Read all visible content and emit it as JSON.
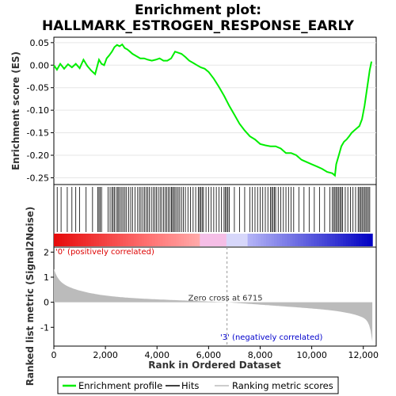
{
  "chart_data": {
    "type": "line",
    "title_line1": "Enrichment plot:",
    "title_line2": "HALLMARK_ESTROGEN_RESPONSE_EARLY",
    "top_panel": {
      "ylabel": "Enrichment score (ES)",
      "ylim": [
        -0.265,
        0.062
      ],
      "yticks": [
        0.05,
        0.0,
        -0.05,
        -0.1,
        -0.15,
        -0.2,
        -0.25
      ],
      "ytick_labels": [
        "0.05",
        "0.00",
        "-0.05",
        "-0.10",
        "-0.15",
        "-0.20",
        "-0.25"
      ],
      "series": [
        {
          "name": "Enrichment profile",
          "color": "#00ee00",
          "x": [
            0,
            120,
            250,
            400,
            550,
            700,
            850,
            1000,
            1150,
            1300,
            1450,
            1600,
            1750,
            1850,
            1950,
            2050,
            2150,
            2250,
            2350,
            2450,
            2550,
            2650,
            2750,
            2850,
            2950,
            3050,
            3200,
            3350,
            3500,
            3650,
            3800,
            3950,
            4100,
            4250,
            4400,
            4550,
            4700,
            4800,
            4950,
            5100,
            5250,
            5400,
            5550,
            5700,
            5850,
            6000,
            6200,
            6400,
            6600,
            6800,
            7000,
            7200,
            7400,
            7600,
            7800,
            8000,
            8200,
            8400,
            8600,
            8800,
            9000,
            9200,
            9400,
            9600,
            9800,
            10000,
            10200,
            10400,
            10600,
            10800,
            10900,
            10950,
            11050,
            11150,
            11250,
            11350,
            11450,
            11550,
            11650,
            11750,
            11850,
            11950,
            12050,
            12150,
            12250,
            12320
          ],
          "y": [
            0.0,
            -0.01,
            0.003,
            -0.008,
            0.002,
            -0.005,
            0.003,
            -0.007,
            0.012,
            -0.002,
            -0.012,
            -0.02,
            0.012,
            0.003,
            0.0,
            0.015,
            0.022,
            0.03,
            0.04,
            0.045,
            0.042,
            0.046,
            0.038,
            0.035,
            0.03,
            0.025,
            0.02,
            0.015,
            0.015,
            0.012,
            0.01,
            0.012,
            0.015,
            0.01,
            0.01,
            0.015,
            0.03,
            0.028,
            0.025,
            0.018,
            0.01,
            0.005,
            0.0,
            -0.005,
            -0.008,
            -0.015,
            -0.03,
            -0.048,
            -0.068,
            -0.09,
            -0.11,
            -0.13,
            -0.145,
            -0.158,
            -0.165,
            -0.175,
            -0.178,
            -0.18,
            -0.18,
            -0.185,
            -0.195,
            -0.195,
            -0.2,
            -0.21,
            -0.215,
            -0.22,
            -0.225,
            -0.23,
            -0.237,
            -0.24,
            -0.245,
            -0.22,
            -0.2,
            -0.18,
            -0.17,
            -0.165,
            -0.158,
            -0.15,
            -0.145,
            -0.14,
            -0.135,
            -0.12,
            -0.09,
            -0.05,
            -0.01,
            0.008
          ]
        }
      ]
    },
    "bottom_panel": {
      "ylabel": "Ranked list metric (Signal2Noise)",
      "xlabel": "Rank in Ordered Dataset",
      "ylim": [
        -1.75,
        2.2
      ],
      "yticks": [
        2,
        1,
        0,
        -1
      ],
      "ytick_labels": [
        "2",
        "1",
        "0",
        "-1"
      ],
      "zero_cross_label": "Zero cross at 6715",
      "zero_cross": 6715,
      "pos_label": "'0' (positively correlated)",
      "neg_label": "'3' (negatively correlated)",
      "pos_color": "#dd0000",
      "neg_color": "#0000cc"
    },
    "xlim": [
      0,
      12500
    ],
    "xticks": [
      0,
      2000,
      4000,
      6000,
      8000,
      10000,
      12000
    ],
    "xtick_labels": [
      "0",
      "2,000",
      "4,000",
      "6,000",
      "8,000",
      "10,000",
      "12,000"
    ],
    "n_genes": 12350,
    "hits": [
      130,
      280,
      520,
      700,
      850,
      1000,
      1250,
      1500,
      1700,
      1750,
      1800,
      1850,
      2100,
      2180,
      2250,
      2300,
      2350,
      2420,
      2480,
      2520,
      2580,
      2640,
      2700,
      2760,
      2820,
      2900,
      2980,
      3050,
      3150,
      3250,
      3320,
      3380,
      3450,
      3520,
      3580,
      3640,
      3700,
      3780,
      3850,
      3920,
      3980,
      4050,
      4120,
      4180,
      4250,
      4320,
      4380,
      4440,
      4500,
      4560,
      4600,
      4650,
      4700,
      4760,
      4820,
      4880,
      4950,
      5020,
      5100,
      5200,
      5300,
      5400,
      5500,
      5600,
      5650,
      5700,
      5750,
      5800,
      5900,
      6000,
      6100,
      6200,
      6300,
      6400,
      6500,
      6600,
      6650,
      6700,
      6750,
      6800,
      7000,
      7200,
      7400,
      7600,
      7700,
      7800,
      7900,
      8000,
      8100,
      8200,
      8300,
      8400,
      8450,
      8500,
      8550,
      8600,
      8700,
      8800,
      8900,
      9000,
      9100,
      9200,
      9300,
      9500,
      9700,
      9900,
      10100,
      10300,
      10500,
      10700,
      10800,
      10850,
      10900,
      10950,
      11000,
      11050,
      11100,
      11150,
      11200,
      11300,
      11400,
      11500,
      11600,
      11700,
      11800,
      11850,
      11900,
      11950,
      12000,
      12050,
      12100,
      12150,
      12200,
      12250
    ],
    "legend": {
      "items": [
        {
          "label": "Enrichment profile",
          "color": "#00ee00",
          "kind": "line"
        },
        {
          "label": "Hits",
          "color": "#000000",
          "kind": "line"
        },
        {
          "label": "Ranking metric scores",
          "color": "#bbbbbb",
          "kind": "line"
        }
      ]
    }
  }
}
